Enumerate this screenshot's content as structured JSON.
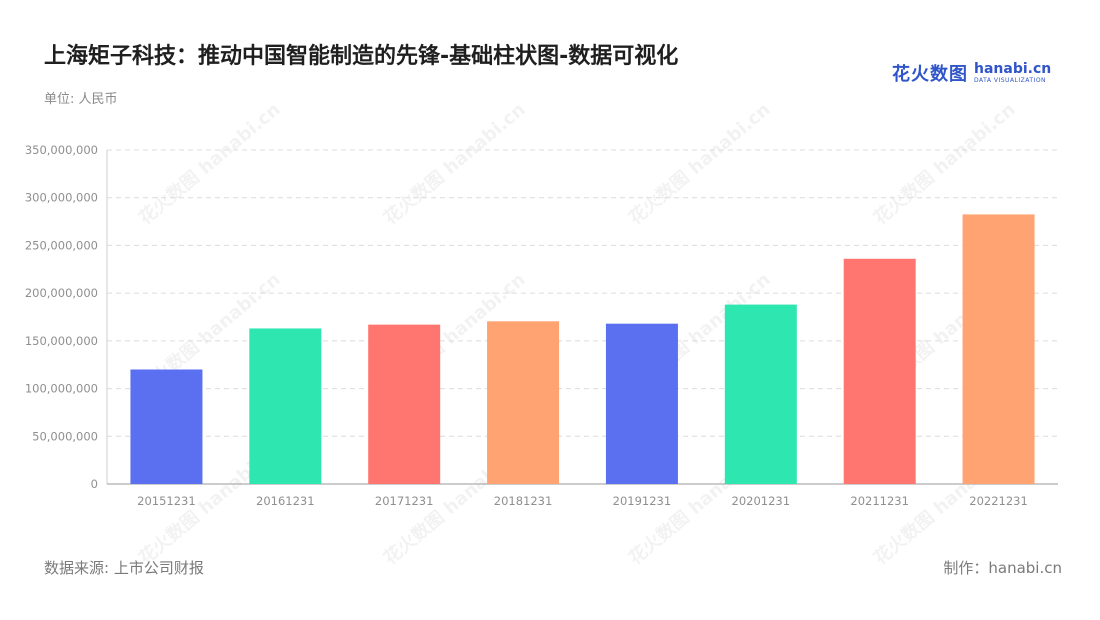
{
  "title": "上海矩子科技：推动中国智能制造的先锋-基础柱状图-数据可视化",
  "unit_label": "单位: 人民币",
  "logo": {
    "cn": "花火数图",
    "en": "hanabi.cn",
    "sub": "DATA VISUALIZATION"
  },
  "footer": {
    "source": "数据来源: 上市公司财报",
    "credit": "制作：hanabi.cn"
  },
  "watermark_text": "花火数图 hanabi.cn",
  "chart_data": {
    "type": "bar",
    "categories": [
      "20151231",
      "20161231",
      "20171231",
      "20181231",
      "20191231",
      "20201231",
      "20211231",
      "20221231"
    ],
    "values": [
      120000000,
      163000000,
      167000000,
      170500000,
      168000000,
      188000000,
      236000000,
      282500000
    ],
    "colors": [
      "#5b70f0",
      "#2ee6b0",
      "#ff7670",
      "#ffa372",
      "#5b70f0",
      "#2ee6b0",
      "#ff7670",
      "#ffa372"
    ],
    "ylim": [
      0,
      350000000
    ],
    "yticks": [
      0,
      50000000,
      100000000,
      150000000,
      200000000,
      250000000,
      300000000,
      350000000
    ],
    "ytick_labels": [
      "0",
      "50,000,000",
      "100,000,000",
      "150,000,000",
      "200,000,000",
      "250,000,000",
      "300,000,000",
      "350,000,000"
    ],
    "grid": true,
    "title": "",
    "xlabel": "",
    "ylabel": ""
  }
}
